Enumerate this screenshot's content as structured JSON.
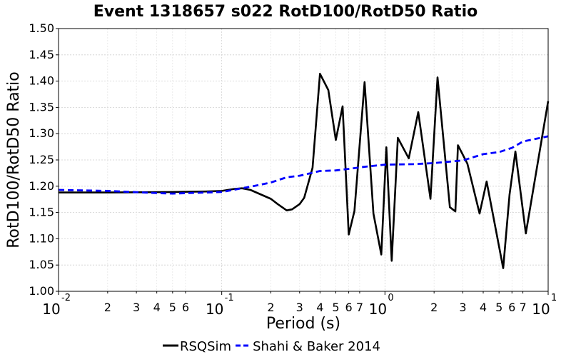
{
  "chart_data": {
    "type": "line",
    "title": "Event 1318657 s022 RotD100/RotD50 Ratio",
    "xlabel": "Period (s)",
    "ylabel": "RotD100/RotD50 Ratio",
    "xscale": "log",
    "xlim": [
      0.01,
      10
    ],
    "ylim": [
      1.0,
      1.5
    ],
    "grid": true,
    "legend_position": "bottom-center",
    "yticks": [
      "1.00",
      "1.05",
      "1.10",
      "1.15",
      "1.20",
      "1.25",
      "1.30",
      "1.35",
      "1.40",
      "1.45",
      "1.50"
    ],
    "xticks_major": [
      {
        "value": 0.01,
        "base": "10",
        "exp": "-2"
      },
      {
        "value": 0.1,
        "base": "10",
        "exp": "-1"
      },
      {
        "value": 1,
        "base": "10",
        "exp": "0"
      },
      {
        "value": 10,
        "base": "10",
        "exp": "1"
      }
    ],
    "xticks_minor": [
      {
        "value": 0.02,
        "label": "2"
      },
      {
        "value": 0.03,
        "label": "3"
      },
      {
        "value": 0.04,
        "label": "4"
      },
      {
        "value": 0.05,
        "label": "5"
      },
      {
        "value": 0.06,
        "label": "6"
      },
      {
        "value": 0.2,
        "label": "2"
      },
      {
        "value": 0.3,
        "label": "3"
      },
      {
        "value": 0.4,
        "label": "4"
      },
      {
        "value": 0.5,
        "label": "5"
      },
      {
        "value": 0.6,
        "label": "6"
      },
      {
        "value": 0.7,
        "label": "7"
      },
      {
        "value": 2,
        "label": "2"
      },
      {
        "value": 3,
        "label": "3"
      },
      {
        "value": 4,
        "label": "4"
      },
      {
        "value": 5,
        "label": "5"
      },
      {
        "value": 6,
        "label": "6"
      },
      {
        "value": 7,
        "label": "7"
      }
    ],
    "series": [
      {
        "name": "RSQSim",
        "color": "#000000",
        "style": "solid",
        "points": [
          [
            0.01,
            1.188
          ],
          [
            0.02,
            1.188
          ],
          [
            0.05,
            1.189
          ],
          [
            0.08,
            1.19
          ],
          [
            0.1,
            1.191
          ],
          [
            0.12,
            1.195
          ],
          [
            0.133,
            1.196
          ],
          [
            0.15,
            1.193
          ],
          [
            0.2,
            1.176
          ],
          [
            0.22,
            1.166
          ],
          [
            0.25,
            1.154
          ],
          [
            0.27,
            1.156
          ],
          [
            0.3,
            1.166
          ],
          [
            0.32,
            1.178
          ],
          [
            0.36,
            1.235
          ],
          [
            0.4,
            1.414
          ],
          [
            0.45,
            1.383
          ],
          [
            0.5,
            1.288
          ],
          [
            0.55,
            1.352
          ],
          [
            0.6,
            1.108
          ],
          [
            0.65,
            1.153
          ],
          [
            0.75,
            1.398
          ],
          [
            0.85,
            1.148
          ],
          [
            0.95,
            1.07
          ],
          [
            1.02,
            1.274
          ],
          [
            1.1,
            1.058
          ],
          [
            1.2,
            1.292
          ],
          [
            1.4,
            1.253
          ],
          [
            1.6,
            1.341
          ],
          [
            1.9,
            1.176
          ],
          [
            2.1,
            1.407
          ],
          [
            2.5,
            1.16
          ],
          [
            2.7,
            1.152
          ],
          [
            2.8,
            1.278
          ],
          [
            3.2,
            1.243
          ],
          [
            3.8,
            1.148
          ],
          [
            4.2,
            1.209
          ],
          [
            5.3,
            1.044
          ],
          [
            5.8,
            1.184
          ],
          [
            6.3,
            1.266
          ],
          [
            7.3,
            1.11
          ],
          [
            10,
            1.362
          ]
        ]
      },
      {
        "name": "Shahi & Baker 2014",
        "color": "#0000ff",
        "style": "dashed",
        "points": [
          [
            0.01,
            1.193
          ],
          [
            0.02,
            1.191
          ],
          [
            0.04,
            1.187
          ],
          [
            0.05,
            1.186
          ],
          [
            0.1,
            1.189
          ],
          [
            0.15,
            1.199
          ],
          [
            0.2,
            1.207
          ],
          [
            0.25,
            1.217
          ],
          [
            0.3,
            1.22
          ],
          [
            0.4,
            1.229
          ],
          [
            0.5,
            1.23
          ],
          [
            0.6,
            1.233
          ],
          [
            0.75,
            1.237
          ],
          [
            1.0,
            1.241
          ],
          [
            1.5,
            1.242
          ],
          [
            2.0,
            1.244
          ],
          [
            3.0,
            1.249
          ],
          [
            4.0,
            1.261
          ],
          [
            5.0,
            1.265
          ],
          [
            6.0,
            1.273
          ],
          [
            7.0,
            1.285
          ],
          [
            10,
            1.295
          ]
        ]
      }
    ]
  }
}
